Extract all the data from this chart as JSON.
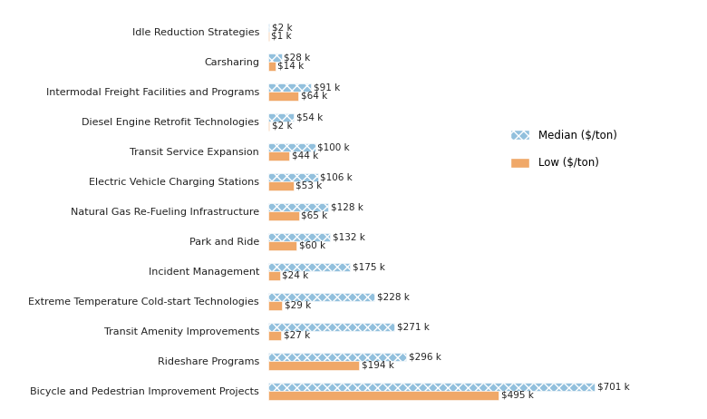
{
  "categories": [
    "Bicycle and Pedestrian Improvement Projects",
    "Rideshare Programs",
    "Transit Amenity Improvements",
    "Extreme Temperature Cold-start Technologies",
    "Incident Management",
    "Park and Ride",
    "Natural Gas Re-Fueling Infrastructure",
    "Electric Vehicle Charging Stations",
    "Transit Service Expansion",
    "Diesel Engine Retrofit Technologies",
    "Intermodal Freight Facilities and Programs",
    "Carsharing",
    "Idle Reduction Strategies"
  ],
  "median_values": [
    701,
    296,
    271,
    228,
    175,
    132,
    128,
    106,
    100,
    54,
    91,
    28,
    2
  ],
  "low_values": [
    495,
    194,
    27,
    29,
    24,
    60,
    65,
    53,
    44,
    2,
    64,
    14,
    1
  ],
  "median_labels": [
    "$701 k",
    "$296 k",
    "$271 k",
    "$228 k",
    "$175 k",
    "$132 k",
    "$128 k",
    "$106 k",
    "$100 k",
    "$54 k",
    "$91 k",
    "$28 k",
    "$2 k"
  ],
  "low_labels": [
    "$495 k",
    "$194 k",
    "$27 k",
    "$29 k",
    "$24 k",
    "$60 k",
    "$65 k",
    "$53 k",
    "$44 k",
    "$2 k",
    "$64 k",
    "$14 k",
    "$1 k"
  ],
  "median_color": "#92c0dd",
  "low_color": "#f0a868",
  "background_color": "#ffffff",
  "legend_median": "Median ($/ton)",
  "legend_low": "Low ($/ton)",
  "bar_height": 0.28,
  "xlim_data": 760,
  "label_fontsize": 7.5,
  "tick_fontsize": 8.0,
  "legend_fontsize": 8.5
}
